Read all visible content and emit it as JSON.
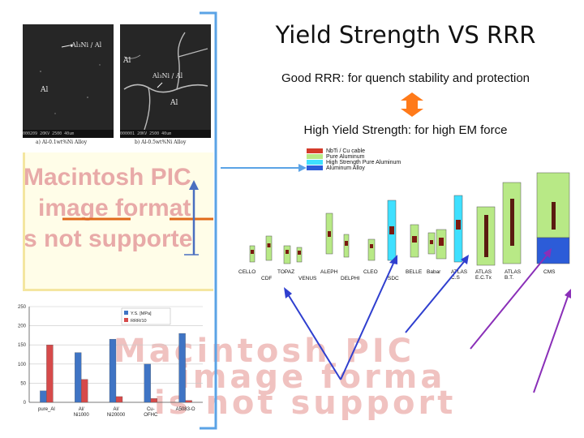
{
  "slide": {
    "title": "Yield Strength VS RRR",
    "line1": "Good RRR: for quench stability and protection",
    "line2": "High Yield Strength: for high EM force"
  },
  "colors": {
    "orange_arrow": "#ff7a1a",
    "pink_bar": "#d64a4a",
    "blue_bar": "#3f74c4",
    "bracket": "#5ba3e6",
    "pointer_blue": "#2f3fcf",
    "pointer_purple": "#8a2fb8",
    "superconductor": "#d43b2a",
    "pure_al": "#b8e986",
    "hs_pure_al": "#3fe0ff",
    "al_alloy": "#2c5cd8"
  },
  "sem": {
    "panel_a": {
      "label_top": "Al₃Ni / Al",
      "label_mid": "Al",
      "scale": "000209 20KV 2500  40um",
      "caption": "a) Al-0.1wt%Ni Alloy"
    },
    "panel_b": {
      "label_top": "Al₃Ni / Al",
      "label_mid": "Al",
      "label_low": "Al",
      "scale": "000001 20KV 2500  40um",
      "caption": "b) Al-0.5wt%Ni Alloy"
    }
  },
  "placeholder": {
    "line1": "Macintosh PIC",
    "line2": "image format",
    "line3": "s not supporte",
    "big_line1": "Macintosh PIC",
    "big_line2": "image forma",
    "big_line3": "is not support"
  },
  "legend": {
    "items": [
      {
        "label": "NbTi / Cu cable",
        "color": "#d43b2a"
      },
      {
        "label": "Pure Aluminum",
        "color": "#b8e986"
      },
      {
        "label": "High Strength Pure Aluminum",
        "color": "#3fe0ff"
      },
      {
        "label": "Aluminum Alloy",
        "color": "#2c5cd8"
      }
    ]
  },
  "magnets": [
    {
      "name": "CELLO"
    },
    {
      "name": "CDF"
    },
    {
      "name": "TOPAZ"
    },
    {
      "name": "VENUS"
    },
    {
      "name": "ALEPH"
    },
    {
      "name": "DELPHI"
    },
    {
      "name": "CLEO"
    },
    {
      "name": "SDC"
    },
    {
      "name": "BELLE"
    },
    {
      "name": "Babar"
    },
    {
      "name": "ATLAS C.S"
    },
    {
      "name": "ATLAS E.C.Tx"
    },
    {
      "name": "ATLAS B.T."
    },
    {
      "name": "CMS"
    }
  ],
  "chart_data": {
    "type": "bar",
    "categories": [
      "pure_Al",
      "Al/ Ni1000",
      "Al/ Ni20000",
      "Cu- OFHC",
      "A5083-O"
    ],
    "series": [
      {
        "name": "Y.S. [MPa]",
        "values": [
          30,
          130,
          165,
          100,
          180
        ],
        "color": "#3f74c4"
      },
      {
        "name": "RRR/10",
        "values": [
          150,
          60,
          15,
          10,
          5
        ],
        "color": "#d64a4a"
      }
    ],
    "ylim": [
      0,
      250
    ],
    "yticks": [
      "0",
      "50",
      "100",
      "150",
      "200",
      "250"
    ],
    "legend_position": "top-right"
  }
}
